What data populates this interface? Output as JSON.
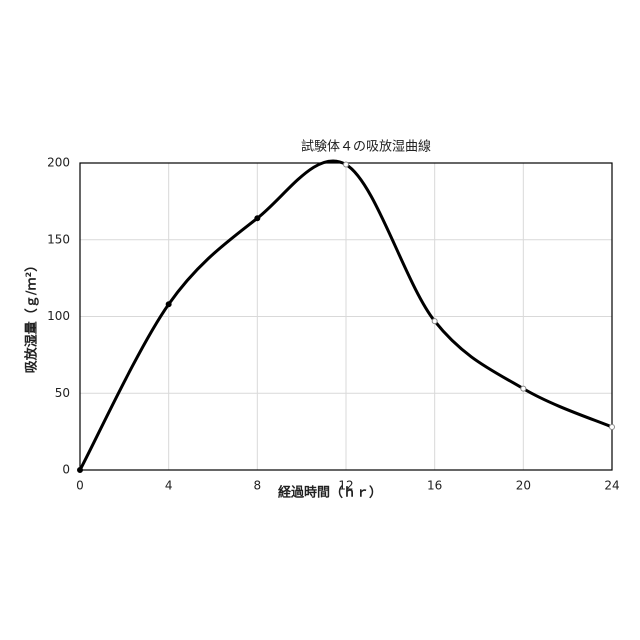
{
  "chart_data": {
    "type": "line",
    "title": "試験体４の吸放湿曲線",
    "x_label": "経過時間（ｈｒ）",
    "y_label": "吸放湿量（ｇ/ｍ²）",
    "x": [
      0,
      4,
      8,
      12,
      16,
      20,
      24
    ],
    "series": [
      {
        "name": "試験体４",
        "color": "#000000",
        "values": [
          0,
          108,
          164,
          199,
          97,
          53,
          28
        ]
      }
    ],
    "xlim": [
      0,
      24
    ],
    "xticks": [
      0,
      4,
      8,
      12,
      16,
      20,
      24
    ],
    "ylim": [
      0,
      200
    ],
    "yticks": [
      0,
      50,
      100,
      150,
      200
    ],
    "grid": true,
    "smooth": true
  }
}
